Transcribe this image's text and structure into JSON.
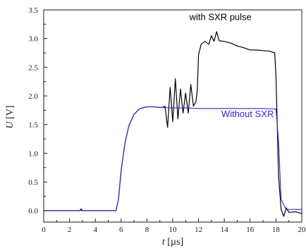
{
  "chart_data": {
    "type": "line",
    "title": "",
    "xlabel": {
      "var": "t",
      "unit": " [µs]"
    },
    "ylabel": {
      "var": "U",
      "unit": " [V]"
    },
    "xlim": [
      0,
      20
    ],
    "ylim": [
      -0.2,
      3.5
    ],
    "xticks": [
      0,
      2,
      4,
      6,
      8,
      10,
      12,
      14,
      16,
      18,
      20
    ],
    "xtick_labels": [
      "0",
      "2",
      "4",
      "6",
      "8",
      "10",
      "12",
      "14",
      "16",
      "18",
      "20"
    ],
    "yticks": [
      0.0,
      0.5,
      1.0,
      1.5,
      2.0,
      2.5,
      3.0,
      3.5
    ],
    "ytick_labels": [
      "0.0",
      "0.5",
      "1.0",
      "1.5",
      "2.0",
      "2.5",
      "3.0",
      "3.5"
    ],
    "grid": false,
    "annotations": [
      {
        "text": "with SXR pulse",
        "x": 13.7,
        "y": 3.32,
        "color": "#000000"
      },
      {
        "text": "Without SXR",
        "x": 15.8,
        "y": 1.63,
        "color": "#2b2bc6"
      }
    ],
    "series": [
      {
        "name": "with SXR pulse",
        "color": "#000000",
        "x": [
          0,
          2.8,
          2.9,
          3.0,
          3.1,
          5.6,
          5.8,
          6.0,
          6.3,
          6.6,
          7.0,
          7.4,
          7.8,
          8.0,
          8.5,
          9.0,
          9.2,
          9.4,
          9.6,
          9.8,
          10.0,
          10.2,
          10.4,
          10.6,
          10.8,
          11.0,
          11.2,
          11.4,
          11.6,
          11.8,
          11.9,
          12.0,
          12.2,
          12.5,
          12.8,
          13.0,
          13.2,
          13.4,
          13.6,
          14.0,
          14.5,
          15.0,
          15.5,
          16.0,
          16.5,
          17.0,
          17.5,
          17.9,
          18.0,
          18.2,
          18.4,
          18.6,
          18.8,
          19.0,
          19.5,
          20.0
        ],
        "y": [
          0.0,
          0.0,
          0.03,
          0.0,
          0.0,
          0.0,
          0.2,
          0.7,
          1.18,
          1.48,
          1.68,
          1.77,
          1.8,
          1.81,
          1.81,
          1.8,
          1.8,
          1.82,
          1.45,
          2.15,
          1.55,
          2.3,
          1.6,
          2.12,
          1.7,
          2.05,
          1.7,
          2.2,
          1.82,
          1.9,
          2.1,
          2.72,
          2.9,
          2.95,
          2.9,
          3.05,
          2.95,
          3.12,
          2.96,
          2.95,
          2.92,
          2.87,
          2.84,
          2.8,
          2.8,
          2.79,
          2.78,
          2.75,
          2.35,
          0.6,
          0.02,
          -0.1,
          0.05,
          -0.03,
          -0.02,
          -0.05
        ]
      },
      {
        "name": "Without SXR",
        "color": "#2b2bc6",
        "x": [
          0,
          5.6,
          5.8,
          6.0,
          6.3,
          6.6,
          7.0,
          7.4,
          7.8,
          8.0,
          8.5,
          9.0,
          10.0,
          11.0,
          12.0,
          14.0,
          16.0,
          17.0,
          18.0,
          18.2,
          18.4,
          18.6,
          18.8,
          19.0,
          19.5,
          20.0
        ],
        "y": [
          0.0,
          0.0,
          0.2,
          0.7,
          1.18,
          1.48,
          1.68,
          1.77,
          1.8,
          1.81,
          1.81,
          1.8,
          1.79,
          1.79,
          1.78,
          1.78,
          1.78,
          1.78,
          1.77,
          1.2,
          0.2,
          0.1,
          0.02,
          0.02,
          0.02,
          0.02
        ]
      }
    ]
  }
}
